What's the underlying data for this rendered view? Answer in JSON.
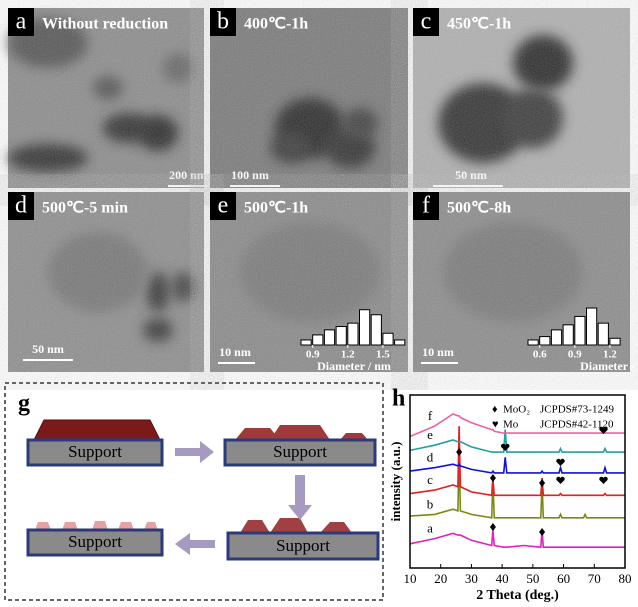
{
  "panels": [
    {
      "letter": "a",
      "title": "Without reduction",
      "scale": "200 nm"
    },
    {
      "letter": "b",
      "title": "400℃-1h",
      "scale": "100 nm"
    },
    {
      "letter": "c",
      "title": "450℃-1h",
      "scale": "50 nm"
    },
    {
      "letter": "d",
      "title": "500℃-5 min",
      "scale": "50 nm"
    },
    {
      "letter": "e",
      "title": "500℃-1h",
      "scale": "10 nm"
    },
    {
      "letter": "f",
      "title": "500℃-8h",
      "scale": "10 nm"
    }
  ],
  "schematic": {
    "letter": "g",
    "supports": [
      "Support",
      "Support",
      "Support",
      "Support"
    ]
  },
  "chart_data": [
    {
      "type": "histogram",
      "xlabel": "Diameter / nm",
      "bins": [
        0.8,
        0.9,
        1.0,
        1.1,
        1.2,
        1.3,
        1.4,
        1.5,
        1.6,
        1.7
      ],
      "values": [
        3,
        6,
        9,
        11,
        13,
        21,
        18,
        7,
        3
      ],
      "xlim": [
        0.8,
        1.7
      ],
      "xticks": [
        0.9,
        1.2,
        1.5
      ],
      "ylim": [
        0,
        25
      ],
      "color": "#ffffff"
    },
    {
      "type": "histogram",
      "xlabel": "Diameter / nm",
      "bins": [
        0.5,
        0.6,
        0.7,
        0.8,
        0.9,
        1.0,
        1.1,
        1.2,
        1.3
      ],
      "values": [
        3,
        5,
        9,
        12,
        17,
        22,
        13,
        4
      ],
      "xlim": [
        0.5,
        1.3
      ],
      "xticks": [
        0.6,
        0.9,
        1.2
      ],
      "ylim": [
        0,
        25
      ],
      "color": "#ffffff"
    },
    {
      "type": "line",
      "letter": "h",
      "xlabel": "2 Theta (deg.)",
      "ylabel": "intensity (a.u.)",
      "legend": [
        {
          "symbol": "♦",
          "name": "MoO₂",
          "ref": "JCPDS#73-1249"
        },
        {
          "symbol": "♥",
          "name": "Mo",
          "ref": "JCPDS#42-1120"
        }
      ],
      "x": [
        10,
        18,
        24,
        25.6,
        26,
        26.4,
        30,
        36.6,
        37,
        37.4,
        40.5,
        41,
        41.5,
        47,
        52.6,
        53,
        53.4,
        58.5,
        59,
        59.5,
        66.5,
        67,
        67.5,
        73,
        73.5,
        74,
        80
      ],
      "xlim": [
        10,
        80
      ],
      "xticks": [
        10,
        20,
        30,
        40,
        50,
        60,
        70,
        80
      ],
      "ylim": [
        0,
        100
      ],
      "series": [
        {
          "name": "a",
          "color": "#e020c0",
          "values": [
            14,
            17,
            20,
            19,
            19,
            19,
            16,
            13,
            22,
            13,
            12,
            12,
            12,
            13,
            12,
            22,
            12,
            12,
            12,
            12,
            12,
            12,
            12,
            12,
            12,
            12,
            12
          ]
        },
        {
          "name": "b",
          "color": "#7a8a10",
          "values": [
            30,
            31,
            34,
            33,
            67,
            33,
            31,
            29,
            52,
            29,
            29,
            29,
            29,
            29,
            29,
            49,
            29,
            29,
            31,
            29,
            29,
            31,
            29,
            29,
            29,
            29,
            29
          ]
        },
        {
          "name": "c",
          "color": "#e02020",
          "values": [
            43,
            45,
            48,
            47,
            82,
            47,
            44,
            42,
            52,
            42,
            42,
            42,
            42,
            42,
            42,
            52,
            42,
            42,
            43,
            42,
            42,
            42,
            42,
            42,
            43,
            42,
            42
          ]
        },
        {
          "name": "d",
          "color": "#1010e0",
          "values": [
            56,
            58,
            60,
            59,
            60,
            59,
            57,
            55,
            56,
            55,
            55,
            64,
            55,
            55,
            55,
            56,
            55,
            55,
            58,
            55,
            55,
            55,
            55,
            55,
            58,
            55,
            55
          ]
        },
        {
          "name": "e",
          "color": "#20a0a0",
          "values": [
            68,
            71,
            74,
            73,
            73,
            73,
            70,
            67,
            67,
            67,
            67,
            80,
            67,
            67,
            67,
            67,
            67,
            67,
            69,
            67,
            67,
            67,
            67,
            67,
            69,
            67,
            67
          ]
        },
        {
          "name": "f",
          "color": "#f060a0",
          "values": [
            76,
            82,
            89,
            88,
            88,
            87,
            84,
            80,
            80,
            79,
            78,
            78,
            78,
            78,
            78,
            78,
            78,
            78,
            78,
            78,
            78,
            78,
            78,
            78,
            78,
            78,
            78
          ]
        }
      ]
    }
  ]
}
